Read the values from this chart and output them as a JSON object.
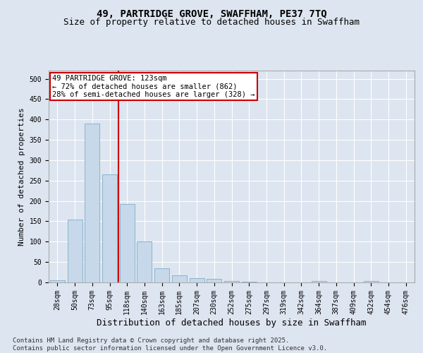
{
  "title": "49, PARTRIDGE GROVE, SWAFFHAM, PE37 7TQ",
  "subtitle": "Size of property relative to detached houses in Swaffham",
  "xlabel": "Distribution of detached houses by size in Swaffham",
  "ylabel": "Number of detached properties",
  "categories": [
    "28sqm",
    "50sqm",
    "73sqm",
    "95sqm",
    "118sqm",
    "140sqm",
    "163sqm",
    "185sqm",
    "207sqm",
    "230sqm",
    "252sqm",
    "275sqm",
    "297sqm",
    "319sqm",
    "342sqm",
    "364sqm",
    "387sqm",
    "409sqm",
    "432sqm",
    "454sqm",
    "476sqm"
  ],
  "values": [
    5,
    155,
    390,
    265,
    192,
    100,
    35,
    18,
    10,
    8,
    3,
    1,
    0,
    0,
    0,
    3,
    0,
    0,
    3,
    0,
    0
  ],
  "bar_color": "#c6d8ea",
  "bar_edge_color": "#8ab4cc",
  "vline_color": "#cc0000",
  "vline_index": 4,
  "annotation_text": "49 PARTRIDGE GROVE: 123sqm\n← 72% of detached houses are smaller (862)\n28% of semi-detached houses are larger (328) →",
  "annotation_box_edge": "#cc0000",
  "ylim": [
    0,
    520
  ],
  "yticks": [
    0,
    50,
    100,
    150,
    200,
    250,
    300,
    350,
    400,
    450,
    500
  ],
  "bg_color": "#dde5f0",
  "plot_bg_color": "#dde5f0",
  "grid_color": "#ffffff",
  "footer": "Contains HM Land Registry data © Crown copyright and database right 2025.\nContains public sector information licensed under the Open Government Licence v3.0.",
  "title_fontsize": 10,
  "subtitle_fontsize": 9,
  "xlabel_fontsize": 9,
  "ylabel_fontsize": 8,
  "tick_fontsize": 7,
  "annot_fontsize": 7.5,
  "footer_fontsize": 6.5
}
